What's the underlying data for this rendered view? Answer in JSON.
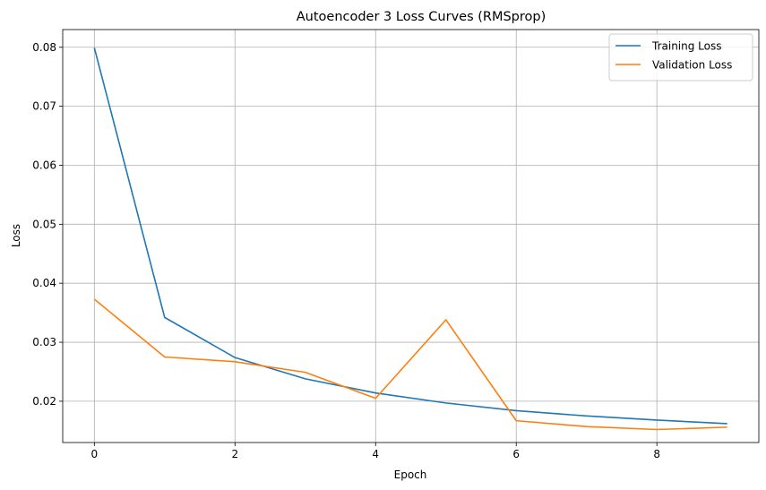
{
  "chart_data": {
    "type": "line",
    "title": "Autoencoder 3 Loss Curves (RMSprop)",
    "xlabel": "Epoch",
    "ylabel": "Loss",
    "x": [
      0,
      1,
      2,
      3,
      4,
      5,
      6,
      7,
      8,
      9
    ],
    "xlim": [
      -0.45,
      9.45
    ],
    "ylim": [
      0.013,
      0.083
    ],
    "xticks": [
      0,
      2,
      4,
      6,
      8
    ],
    "yticks": [
      0.02,
      0.03,
      0.04,
      0.05,
      0.06,
      0.07,
      0.08
    ],
    "ytick_labels": [
      "0.02",
      "0.03",
      "0.04",
      "0.05",
      "0.06",
      "0.07",
      "0.08"
    ],
    "grid": true,
    "legend_position": "top-right",
    "series": [
      {
        "name": "Training Loss",
        "color": "#1f77b4",
        "values": [
          0.0799,
          0.0342,
          0.0274,
          0.0238,
          0.0214,
          0.0197,
          0.0184,
          0.0175,
          0.0168,
          0.0162
        ]
      },
      {
        "name": "Validation Loss",
        "color": "#ff7f0e",
        "values": [
          0.0373,
          0.0275,
          0.0267,
          0.0249,
          0.0205,
          0.0338,
          0.0167,
          0.0157,
          0.0152,
          0.0156
        ]
      }
    ]
  }
}
